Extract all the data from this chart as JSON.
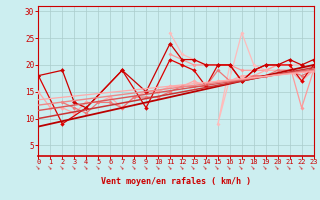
{
  "xlabel": "Vent moyen/en rafales ( km/h )",
  "xlim": [
    0,
    23
  ],
  "ylim": [
    3,
    31
  ],
  "yticks": [
    5,
    10,
    15,
    20,
    25,
    30
  ],
  "xticks": [
    0,
    1,
    2,
    3,
    4,
    5,
    6,
    7,
    8,
    9,
    10,
    11,
    12,
    13,
    14,
    15,
    16,
    17,
    18,
    19,
    20,
    21,
    22,
    23
  ],
  "bg_color": "#cceef0",
  "grid_color": "#aacccc",
  "series": [
    {
      "x": [
        0,
        2,
        3,
        4,
        7,
        9,
        11,
        12,
        13,
        14,
        15,
        16,
        17,
        18,
        19,
        20,
        21,
        22,
        23
      ],
      "y": [
        18,
        19,
        13,
        12,
        19,
        15,
        24,
        21,
        21,
        20,
        20,
        20,
        17,
        19,
        20,
        20,
        21,
        20,
        21
      ],
      "color": "#cc0000",
      "lw": 0.9,
      "marker": "D",
      "ms": 2.2,
      "zorder": 5
    },
    {
      "x": [
        0,
        1,
        2,
        3,
        4,
        5,
        6,
        7,
        8,
        9,
        10,
        11,
        12,
        13,
        14,
        15,
        16,
        17,
        18,
        19,
        20,
        21,
        22,
        23
      ],
      "y": [
        15,
        12,
        12,
        11,
        13,
        13,
        14,
        12,
        14,
        15,
        15,
        16,
        16,
        17,
        16,
        17,
        17,
        18,
        18,
        19,
        19,
        19,
        17,
        19
      ],
      "color": "#ffaaaa",
      "lw": 0.9,
      "marker": "D",
      "ms": 2.0,
      "zorder": 3
    },
    {
      "x": [
        0,
        2,
        4,
        7,
        9,
        11,
        12,
        13,
        14,
        15,
        16,
        17,
        18,
        19,
        20,
        21,
        22,
        23
      ],
      "y": [
        18,
        9,
        12,
        19,
        12,
        21,
        20,
        19,
        16,
        20,
        20,
        17,
        19,
        20,
        20,
        20,
        17,
        20
      ],
      "color": "#dd0000",
      "lw": 0.9,
      "marker": "D",
      "ms": 2.0,
      "zorder": 4
    },
    {
      "x": [
        2,
        3,
        4,
        5,
        6,
        7,
        8,
        9,
        10,
        11,
        12,
        13,
        14,
        15,
        16,
        17,
        18,
        19,
        20,
        21,
        22,
        23
      ],
      "y": [
        13,
        12,
        11,
        13,
        13,
        12,
        14,
        14,
        14,
        15,
        16,
        16,
        16,
        19,
        17,
        17,
        18,
        18,
        19,
        19,
        18,
        19
      ],
      "color": "#ee7777",
      "lw": 0.9,
      "marker": "D",
      "ms": 1.8,
      "zorder": 3
    },
    {
      "x": [
        11,
        12,
        13,
        14,
        15,
        16,
        15,
        17,
        18,
        19,
        20,
        21,
        22,
        23
      ],
      "y": [
        26,
        22,
        21,
        20,
        20,
        20,
        9,
        26,
        20,
        19,
        20,
        20,
        20,
        19
      ],
      "color": "#ffbbbb",
      "lw": 0.9,
      "marker": "D",
      "ms": 1.8,
      "zorder": 2
    },
    {
      "x": [
        11,
        12,
        13,
        14,
        15,
        16,
        17,
        18,
        19,
        20,
        21,
        22,
        23
      ],
      "y": [
        22,
        21,
        20,
        20,
        20,
        20,
        19,
        19,
        19,
        20,
        20,
        12,
        19
      ],
      "color": "#ff9999",
      "lw": 0.9,
      "marker": "D",
      "ms": 1.8,
      "zorder": 2
    },
    {
      "x": [
        0,
        23
      ],
      "y": [
        8.5,
        20.0
      ],
      "color": "#bb0000",
      "lw": 1.3,
      "marker": null,
      "ms": 0,
      "zorder": 6
    },
    {
      "x": [
        0,
        23
      ],
      "y": [
        10.0,
        19.5
      ],
      "color": "#cc3333",
      "lw": 1.1,
      "marker": null,
      "ms": 0,
      "zorder": 6
    },
    {
      "x": [
        0,
        23
      ],
      "y": [
        11.5,
        19.2
      ],
      "color": "#dd5555",
      "lw": 1.0,
      "marker": null,
      "ms": 0,
      "zorder": 6
    },
    {
      "x": [
        0,
        23
      ],
      "y": [
        12.5,
        19.0
      ],
      "color": "#ee8888",
      "lw": 1.0,
      "marker": null,
      "ms": 0,
      "zorder": 6
    },
    {
      "x": [
        0,
        23
      ],
      "y": [
        13.5,
        18.8
      ],
      "color": "#ffaaaa",
      "lw": 0.9,
      "marker": null,
      "ms": 0,
      "zorder": 6
    }
  ]
}
